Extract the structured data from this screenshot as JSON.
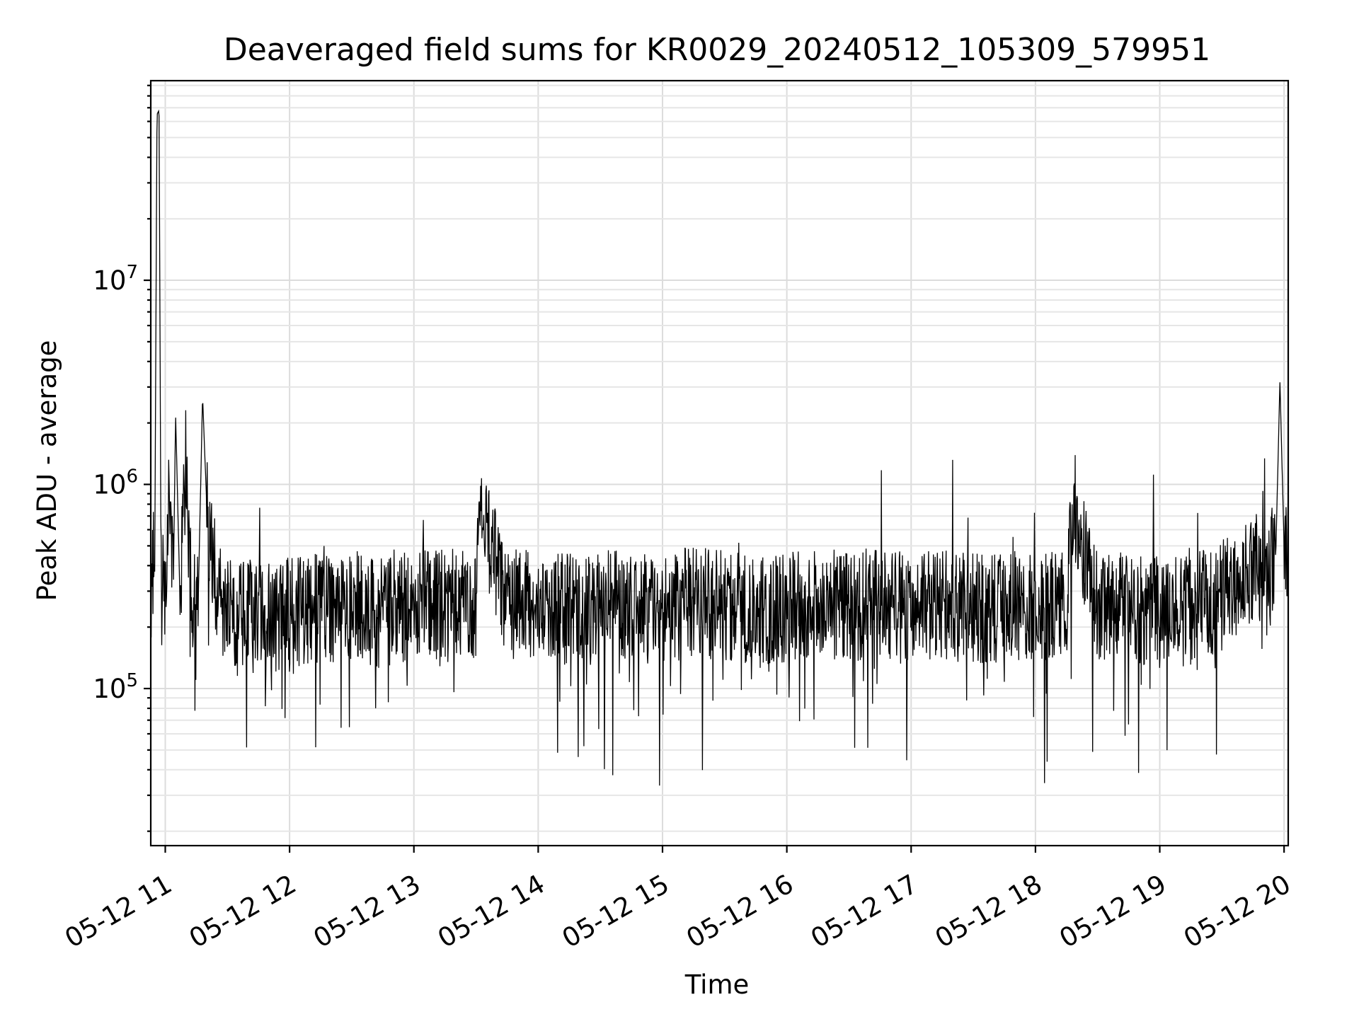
{
  "chart_data": {
    "type": "line",
    "title": "Deaveraged field sums for KR0029_20240512_105309_579951",
    "xlabel": "Time",
    "ylabel": "Peak ADU - average",
    "y_scale": "log",
    "ylim": [
      17000,
      95000000
    ],
    "xlim": [
      "2024-05-12 10:53",
      "2024-05-12 20:02"
    ],
    "x_ticks": [
      "05-12 11",
      "05-12 12",
      "05-12 13",
      "05-12 14",
      "05-12 15",
      "05-12 16",
      "05-12 17",
      "05-12 18",
      "05-12 19",
      "05-12 20"
    ],
    "x_tick_times": [
      "2024-05-12 11:00",
      "2024-05-12 12:00",
      "2024-05-12 13:00",
      "2024-05-12 14:00",
      "2024-05-12 15:00",
      "2024-05-12 16:00",
      "2024-05-12 17:00",
      "2024-05-12 18:00",
      "2024-05-12 19:00",
      "2024-05-12 20:00"
    ],
    "y_ticks": [
      {
        "value": 100000,
        "base": "10",
        "exp": "5"
      },
      {
        "value": 1000000,
        "base": "10",
        "exp": "6"
      },
      {
        "value": 10000000,
        "base": "10",
        "exp": "7"
      }
    ],
    "grid": true,
    "legend": "none",
    "series": [
      {
        "color": "#000000",
        "x": [
          "2024-05-12 10:53",
          "2024-05-12 10:55",
          "2024-05-12 10:56",
          "2024-05-12 10:57",
          "2024-05-12 10:58",
          "2024-05-12 11:00",
          "2024-05-12 11:02",
          "2024-05-12 11:04",
          "2024-05-12 11:05",
          "2024-05-12 11:07",
          "2024-05-12 11:10",
          "2024-05-12 11:13",
          "2024-05-12 11:16",
          "2024-05-12 11:18",
          "2024-05-12 11:20",
          "2024-05-12 11:22",
          "2024-05-12 11:25",
          "2024-05-12 11:30",
          "2024-05-12 11:35",
          "2024-05-12 11:40",
          "2024-05-12 11:50",
          "2024-05-12 12:00",
          "2024-05-12 12:15",
          "2024-05-12 12:30",
          "2024-05-12 12:45",
          "2024-05-12 13:00",
          "2024-05-12 13:15",
          "2024-05-12 13:30",
          "2024-05-12 13:32",
          "2024-05-12 13:45",
          "2024-05-12 14:00",
          "2024-05-12 14:15",
          "2024-05-12 14:30",
          "2024-05-12 14:45",
          "2024-05-12 14:57",
          "2024-05-12 15:00",
          "2024-05-12 15:15",
          "2024-05-12 15:30",
          "2024-05-12 15:45",
          "2024-05-12 16:00",
          "2024-05-12 16:15",
          "2024-05-12 16:30",
          "2024-05-12 16:45",
          "2024-05-12 17:00",
          "2024-05-12 17:15",
          "2024-05-12 17:30",
          "2024-05-12 17:45",
          "2024-05-12 18:00",
          "2024-05-12 18:15",
          "2024-05-12 18:18",
          "2024-05-12 18:30",
          "2024-05-12 18:45",
          "2024-05-12 19:00",
          "2024-05-12 19:15",
          "2024-05-12 19:30",
          "2024-05-12 19:40",
          "2024-05-12 19:50",
          "2024-05-12 19:56",
          "2024-05-12 19:58",
          "2024-05-12 20:00",
          "2024-05-12 20:02"
        ],
        "y": [
          350000,
          600000,
          65000000,
          68000000,
          300000,
          350000,
          900000,
          400000,
          2200000,
          300000,
          1500000,
          250000,
          300000,
          2700000,
          800000,
          600000,
          300000,
          250000,
          230000,
          260000,
          240000,
          250000,
          260000,
          270000,
          250000,
          270000,
          280000,
          260000,
          800000,
          280000,
          270000,
          260000,
          280000,
          270000,
          260000,
          270000,
          280000,
          270000,
          260000,
          270000,
          280000,
          270000,
          280000,
          270000,
          280000,
          260000,
          270000,
          280000,
          260000,
          900000,
          270000,
          260000,
          250000,
          260000,
          300000,
          380000,
          420000,
          450000,
          3200000,
          500000,
          550000
        ]
      }
    ]
  }
}
